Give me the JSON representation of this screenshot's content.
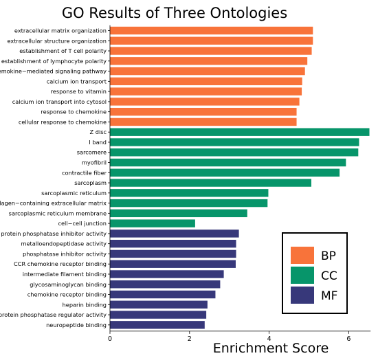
{
  "chart_data": {
    "type": "bar",
    "orientation": "horizontal",
    "title": "GO Results of Three Ontologies",
    "xlabel": "Enrichment Score",
    "ylabel": "",
    "xlim": [
      0,
      6.55
    ],
    "xticks": [
      0,
      2,
      4,
      6
    ],
    "grid": false,
    "legend_position": "bottom-right",
    "series": [
      {
        "name": "BP",
        "color": "#F8733A",
        "categories": [
          "extracellular matrix organization",
          "extracellular structure organization",
          "establishment of T cell polarity",
          "establishment of lymphocyte polarity",
          "chemokine−mediated signaling pathway",
          "calcium ion transport",
          "response to vitamin",
          "calcium ion transport into cytosol",
          "response to chemokine",
          "cellular response to chemokine"
        ],
        "values": [
          5.1,
          5.1,
          5.07,
          4.96,
          4.9,
          4.83,
          4.82,
          4.76,
          4.69,
          4.69
        ]
      },
      {
        "name": "CC",
        "color": "#07956A",
        "categories": [
          "Z disc",
          "I band",
          "sarcomere",
          "myofibril",
          "contractile fiber",
          "sarcoplasm",
          "sarcoplasmic reticulum",
          "collagen−containing extracellular matrix",
          "sarcoplasmic reticulum membrane",
          "cell−cell junction"
        ],
        "values": [
          6.52,
          6.26,
          6.24,
          5.93,
          5.77,
          5.06,
          3.98,
          3.96,
          3.45,
          2.14
        ]
      },
      {
        "name": "MF",
        "color": "#37387A",
        "categories": [
          "protein phosphatase inhibitor activity",
          "metalloendopeptidase activity",
          "phosphatase inhibitor activity",
          "CCR chemokine receptor binding",
          "intermediate filament binding",
          "glycosaminoglycan binding",
          "chemokine receptor binding",
          "heparin binding",
          "protein phosphatase regulator activity",
          "neuropeptide binding"
        ],
        "values": [
          3.24,
          3.17,
          3.17,
          3.16,
          2.86,
          2.77,
          2.65,
          2.45,
          2.42,
          2.38
        ]
      }
    ]
  }
}
